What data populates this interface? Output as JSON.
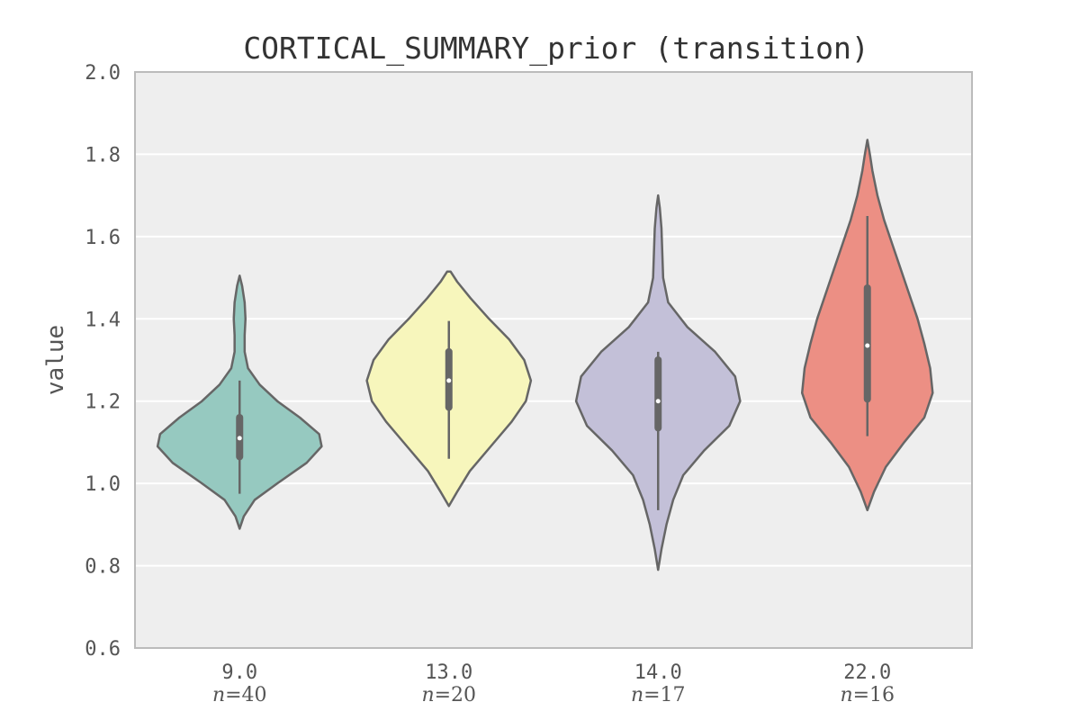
{
  "chart_data": {
    "type": "violin",
    "title": "CORTICAL_SUMMARY_prior (transition)",
    "xlabel": "",
    "ylabel": "value",
    "ylim": [
      0.6,
      2.0
    ],
    "yticks": [
      "0.6",
      "0.8",
      "1.0",
      "1.2",
      "1.4",
      "1.6",
      "1.8",
      "2.0"
    ],
    "grid": true,
    "n_prefix": "n",
    "n_sep": "=",
    "categories": [
      {
        "label": "9.0",
        "n": "40",
        "color": "#96c9c0",
        "median": 1.11,
        "q1": 1.065,
        "q3": 1.16,
        "whisker_low": 0.975,
        "whisker_high": 1.25,
        "density": [
          [
            0.89,
            0
          ],
          [
            0.92,
            0.05
          ],
          [
            0.96,
            0.18
          ],
          [
            1.0,
            0.45
          ],
          [
            1.05,
            0.8
          ],
          [
            1.09,
            0.98
          ],
          [
            1.12,
            0.95
          ],
          [
            1.16,
            0.72
          ],
          [
            1.2,
            0.45
          ],
          [
            1.24,
            0.24
          ],
          [
            1.28,
            0.1
          ],
          [
            1.32,
            0.06
          ],
          [
            1.36,
            0.06
          ],
          [
            1.4,
            0.07
          ],
          [
            1.44,
            0.06
          ],
          [
            1.48,
            0.03
          ],
          [
            1.505,
            0
          ]
        ]
      },
      {
        "label": "13.0",
        "n": "20",
        "color": "#f7f6bc",
        "median": 1.25,
        "q1": 1.185,
        "q3": 1.32,
        "whisker_low": 1.06,
        "whisker_high": 1.395,
        "density": [
          [
            0.945,
            0
          ],
          [
            0.98,
            0.1
          ],
          [
            1.03,
            0.25
          ],
          [
            1.09,
            0.5
          ],
          [
            1.15,
            0.75
          ],
          [
            1.2,
            0.92
          ],
          [
            1.25,
            0.98
          ],
          [
            1.3,
            0.9
          ],
          [
            1.35,
            0.72
          ],
          [
            1.4,
            0.48
          ],
          [
            1.45,
            0.26
          ],
          [
            1.49,
            0.1
          ],
          [
            1.515,
            0.02
          ]
        ]
      },
      {
        "label": "14.0",
        "n": "17",
        "color": "#c3c0d8",
        "median": 1.2,
        "q1": 1.135,
        "q3": 1.3,
        "whisker_low": 0.935,
        "whisker_high": 1.32,
        "density": [
          [
            0.79,
            0
          ],
          [
            0.84,
            0.04
          ],
          [
            0.9,
            0.1
          ],
          [
            0.96,
            0.18
          ],
          [
            1.02,
            0.3
          ],
          [
            1.08,
            0.55
          ],
          [
            1.14,
            0.85
          ],
          [
            1.2,
            0.98
          ],
          [
            1.26,
            0.92
          ],
          [
            1.32,
            0.68
          ],
          [
            1.38,
            0.35
          ],
          [
            1.44,
            0.12
          ],
          [
            1.5,
            0.06
          ],
          [
            1.56,
            0.05
          ],
          [
            1.62,
            0.04
          ],
          [
            1.67,
            0.02
          ],
          [
            1.7,
            0
          ]
        ]
      },
      {
        "label": "22.0",
        "n": "16",
        "color": "#ec8f84",
        "median": 1.335,
        "q1": 1.205,
        "q3": 1.475,
        "whisker_low": 1.115,
        "whisker_high": 1.65,
        "density": [
          [
            0.935,
            0
          ],
          [
            0.98,
            0.08
          ],
          [
            1.04,
            0.22
          ],
          [
            1.1,
            0.44
          ],
          [
            1.16,
            0.68
          ],
          [
            1.22,
            0.78
          ],
          [
            1.28,
            0.75
          ],
          [
            1.34,
            0.68
          ],
          [
            1.4,
            0.6
          ],
          [
            1.46,
            0.5
          ],
          [
            1.52,
            0.4
          ],
          [
            1.58,
            0.3
          ],
          [
            1.64,
            0.2
          ],
          [
            1.7,
            0.12
          ],
          [
            1.76,
            0.06
          ],
          [
            1.8,
            0.03
          ],
          [
            1.835,
            0
          ]
        ]
      }
    ]
  }
}
